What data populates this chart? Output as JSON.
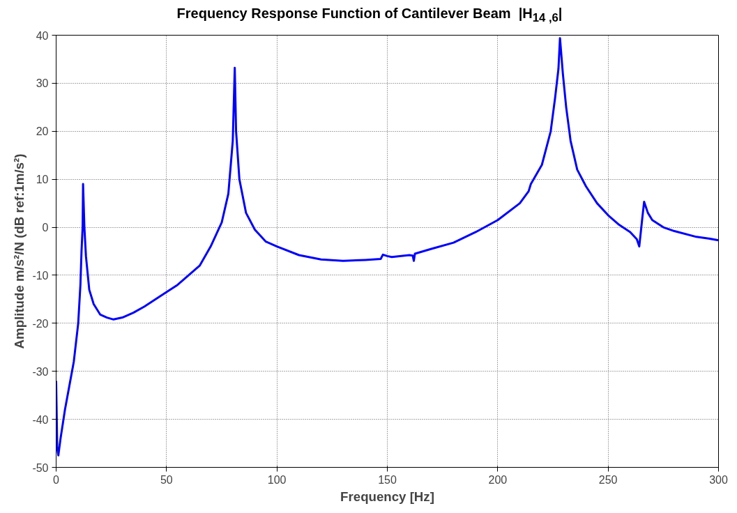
{
  "chart_data": {
    "type": "line",
    "title": "Frequency Response Function of Cantilever Beam   |H$_{14 ,6}$|",
    "xlabel": "Frequency [Hz]",
    "ylabel": "Amplitude m/s²/N (dB ref:1m/s²)",
    "xlim": [
      0,
      300
    ],
    "ylim": [
      -50,
      40
    ],
    "xticks": [
      0,
      50,
      100,
      150,
      200,
      250,
      300
    ],
    "yticks": [
      -50,
      -40,
      -30,
      -20,
      -10,
      0,
      10,
      20,
      30,
      40
    ],
    "grid": true,
    "marker": "none",
    "line_style": "solid",
    "series": [
      {
        "color": "#0000ff",
        "x": [
          0,
          0.5,
          1,
          2,
          4,
          6,
          8,
          10,
          11,
          11.5,
          12,
          12.2,
          12.8,
          13.5,
          15,
          17,
          20,
          23,
          26,
          30,
          35,
          40,
          50,
          55,
          60,
          65,
          70,
          75,
          78,
          80,
          80.9,
          81.5,
          83,
          86,
          90,
          95,
          100,
          110,
          120,
          130,
          140,
          147,
          148,
          150,
          152,
          160,
          161.5,
          162,
          162.5,
          170,
          180,
          190,
          200,
          210,
          214,
          215,
          220,
          224,
          226,
          227.5,
          228.2,
          229.5,
          231,
          233,
          236,
          240,
          245,
          250,
          255,
          260,
          263,
          264.1,
          265.5,
          266.3,
          268,
          270,
          275,
          280,
          290,
          295,
          300
        ],
        "values": [
          -32,
          -46,
          -47.5,
          -44,
          -38,
          -33,
          -28,
          -20,
          -12,
          -5,
          0,
          9,
          0,
          -6,
          -13,
          -16,
          -18.2,
          -18.8,
          -19.2,
          -18.8,
          -17.8,
          -16.5,
          -13.5,
          -12,
          -10,
          -8,
          -4,
          1,
          7,
          18,
          33.2,
          20,
          10,
          3,
          -0.5,
          -3,
          -4,
          -5.8,
          -6.7,
          -7,
          -6.8,
          -6.6,
          -5.7,
          -6,
          -6.2,
          -5.8,
          -5.9,
          -7,
          -5.5,
          -4.5,
          -3.2,
          -1,
          1.5,
          5,
          7.5,
          9,
          13,
          20,
          27,
          33,
          39.4,
          32,
          25,
          18,
          12,
          8.5,
          5,
          2.5,
          0.5,
          -1,
          -2.5,
          -4,
          2,
          5.3,
          3,
          1.5,
          0,
          -0.8,
          -2,
          -2.3,
          -2.7
        ]
      }
    ]
  }
}
